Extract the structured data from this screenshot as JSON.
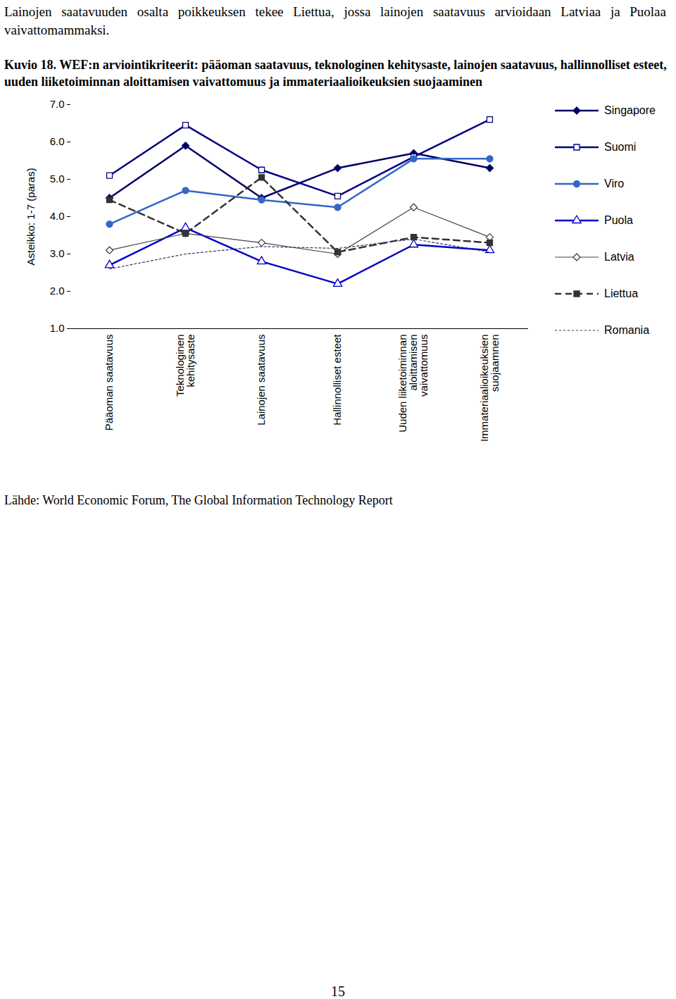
{
  "text": "Lainojen saatavuuden osalta poikkeuksen tekee Liettua, jossa lainojen saatavuus arvioidaan Latviaa ja Puolaa vaivattomammaksi.",
  "source": "Lähde: World Economic Forum, The Global Information Technology Report",
  "page_number": "15",
  "chart_data": {
    "type": "line",
    "title": "Kuvio 18. WEF:n arviointikriteerit: pääoman saatavuus, teknologinen kehitysaste, lainojen saatavuus, hallinnolliset esteet, uuden liiketoiminnan aloittamisen vaivattomuus ja immateriaalioikeuksien suojaaminen",
    "y_label": "Asteikko: 1-7 (paras)",
    "categories": [
      "Pääoman saatavuus",
      "Teknologinen\nkehitysaste",
      "Lainojen saatavuus",
      "Hallinnolliset esteet",
      "Uuden liiketoiminnan\naloittamisen\nvaivattomuus",
      "Immateriaalioikeuksien\nsuojaamnen"
    ],
    "ylim": [
      1,
      7
    ],
    "yticks": [
      1,
      2,
      3,
      4,
      5,
      6,
      7
    ],
    "grid": false,
    "legend": "right",
    "series": [
      {
        "name": "Singapore",
        "color": "#000066",
        "marker": "diamond",
        "line_style": "solid",
        "values": [
          4.5,
          5.9,
          4.5,
          5.3,
          5.7,
          5.3
        ]
      },
      {
        "name": "Suomi",
        "color": "#000080",
        "marker": "square_open",
        "line_style": "solid",
        "values": [
          5.1,
          6.45,
          5.25,
          4.55,
          5.6,
          6.6
        ]
      },
      {
        "name": "Viro",
        "color": "#3366cc",
        "marker": "circle",
        "line_style": "solid",
        "values": [
          3.8,
          4.7,
          4.45,
          4.25,
          5.55,
          5.55
        ]
      },
      {
        "name": "Puola",
        "color": "#0000cc",
        "marker": "triangle_open",
        "line_style": "solid",
        "values": [
          2.7,
          3.7,
          2.8,
          2.2,
          3.25,
          3.1
        ]
      },
      {
        "name": "Latvia",
        "color": "#444444",
        "marker": "diamond_open",
        "line_style": "thin",
        "values": [
          3.1,
          3.55,
          3.3,
          3.0,
          4.25,
          3.45
        ]
      },
      {
        "name": "Liettua",
        "color": "#333333",
        "marker": "square",
        "line_style": "dashed",
        "values": [
          4.45,
          3.55,
          5.05,
          3.05,
          3.45,
          3.3
        ]
      },
      {
        "name": "Romania",
        "color": "#333366",
        "marker": "none",
        "line_style": "dotted",
        "values": [
          2.6,
          3.0,
          3.2,
          3.15,
          3.4,
          3.05
        ]
      }
    ]
  }
}
